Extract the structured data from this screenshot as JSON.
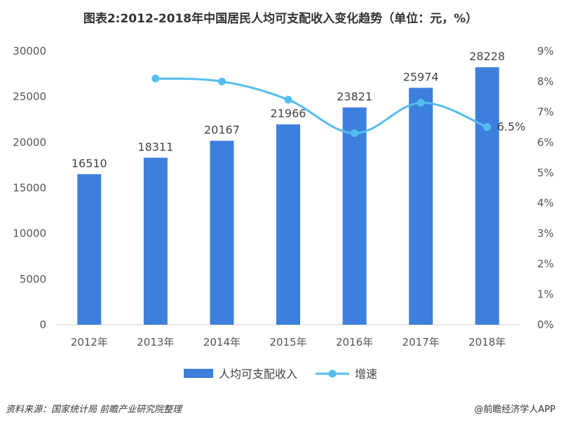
{
  "title": "图表2:2012-2018年中国居民人均可支配收入变化趋势（单位：元，%）",
  "footer": {
    "source": "资料来源：国家统计局  前瞻产业研究院整理",
    "brand": "@前瞻经济学人APP"
  },
  "chart_data": {
    "type": "bar",
    "categories": [
      "2012年",
      "2013年",
      "2014年",
      "2015年",
      "2016年",
      "2017年",
      "2018年"
    ],
    "series": [
      {
        "name": "人均可支配收入",
        "type": "bar",
        "axis": "left",
        "values": [
          16510,
          18311,
          20167,
          21966,
          23821,
          25974,
          28228
        ]
      },
      {
        "name": "增速",
        "type": "line",
        "axis": "right",
        "values": [
          null,
          8.1,
          8.0,
          7.4,
          6.3,
          7.3,
          6.5
        ]
      }
    ],
    "bar_labels": [
      "16510",
      "18311",
      "20167",
      "21966",
      "23821",
      "25974",
      "28228"
    ],
    "line_labels": [
      {
        "index": 6,
        "text": "6.5%"
      }
    ],
    "y_left": {
      "ylim": [
        0,
        30000
      ],
      "ticks": [
        "0",
        "5000",
        "10000",
        "15000",
        "20000",
        "25000",
        "30000"
      ]
    },
    "y_right": {
      "ylim": [
        0,
        9
      ],
      "ticks": [
        "0%",
        "1%",
        "2%",
        "3%",
        "4%",
        "5%",
        "6%",
        "7%",
        "8%",
        "9%"
      ]
    },
    "legend": {
      "position": "bottom"
    },
    "colors": {
      "bar": "#3d7fdc",
      "line": "#55bdf0"
    }
  }
}
